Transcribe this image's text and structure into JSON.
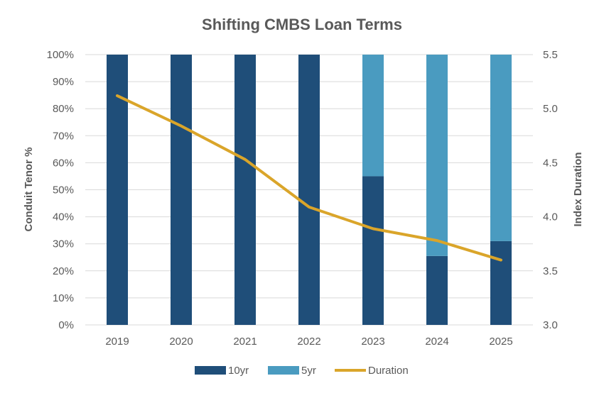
{
  "chart_data": {
    "type": "bar",
    "title": "Shifting CMBS Loan Terms",
    "categories": [
      "2019",
      "2020",
      "2021",
      "2022",
      "2023",
      "2024",
      "2025"
    ],
    "stacked": true,
    "series": [
      {
        "name": "10yr",
        "kind": "bar",
        "axis": "left",
        "values": [
          100,
          100,
          100,
          100,
          55,
          25.5,
          31
        ],
        "color": "#1f4e79"
      },
      {
        "name": "5yr",
        "kind": "bar",
        "axis": "left",
        "values": [
          0,
          0,
          0,
          0,
          45,
          74.5,
          69
        ],
        "color": "#4a9bc0"
      },
      {
        "name": "Duration",
        "kind": "line",
        "axis": "right",
        "values": [
          5.12,
          4.84,
          4.53,
          4.09,
          3.89,
          3.78,
          3.6
        ],
        "color": "#daa52a"
      }
    ],
    "ylabel": "Conduit Tenor %",
    "y2label": "Index Duration",
    "ylim": [
      0,
      100
    ],
    "y2lim": [
      3.0,
      5.5
    ],
    "yticks": [
      "0%",
      "10%",
      "20%",
      "30%",
      "40%",
      "50%",
      "60%",
      "70%",
      "80%",
      "90%",
      "100%"
    ],
    "y2ticks": [
      "3.0",
      "3.5",
      "4.0",
      "4.5",
      "5.0",
      "5.5"
    ],
    "grid": true,
    "legend": "bottom"
  }
}
